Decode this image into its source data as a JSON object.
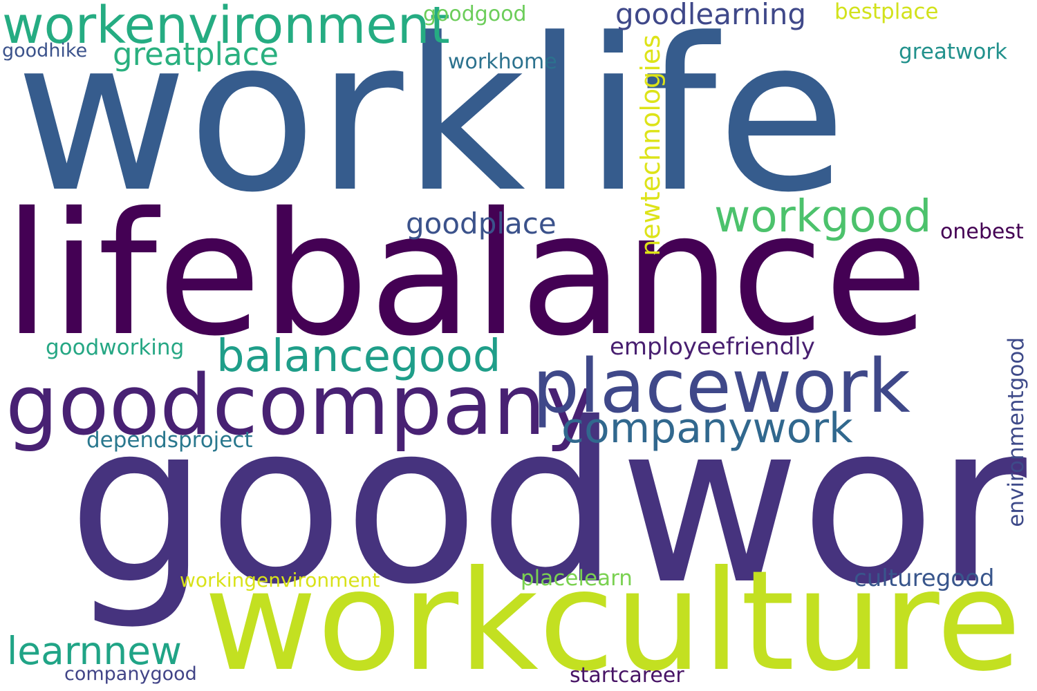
{
  "words": [
    {
      "text": "worklife",
      "color": "#365c8d"
    },
    {
      "text": "lifebalance",
      "color": "#440154"
    },
    {
      "text": "goodwork",
      "color": "#46337e"
    },
    {
      "text": "workculture",
      "color": "#c3e021"
    },
    {
      "text": "goodcompany",
      "color": "#482173"
    },
    {
      "text": "placework",
      "color": "#3f4889"
    },
    {
      "text": "workenvironment",
      "color": "#25ac82"
    },
    {
      "text": "balancegood",
      "color": "#1f9e89"
    },
    {
      "text": "companywork",
      "color": "#31688e"
    },
    {
      "text": "workgood",
      "color": "#4cc26c"
    },
    {
      "text": "goodplace",
      "color": "#3b528b"
    },
    {
      "text": "learnnew",
      "color": "#20a486"
    },
    {
      "text": "greatplace",
      "color": "#2ab07f"
    },
    {
      "text": "goodlearning",
      "color": "#3f4889"
    },
    {
      "text": "newtechnologies",
      "color": "#dde318"
    },
    {
      "text": "employeefriendly",
      "color": "#481f70"
    },
    {
      "text": "environmentgood",
      "color": "#3e4a89"
    },
    {
      "text": "culturegood",
      "color": "#39568c"
    },
    {
      "text": "goodworking",
      "color": "#26a784"
    },
    {
      "text": "dependsproject",
      "color": "#2a788e"
    },
    {
      "text": "workingenvironment",
      "color": "#d8e219"
    },
    {
      "text": "placelearn",
      "color": "#7ad151"
    },
    {
      "text": "companygood",
      "color": "#414487"
    },
    {
      "text": "startcareer",
      "color": "#471365"
    },
    {
      "text": "bestplace",
      "color": "#d2e21b"
    },
    {
      "text": "goodgood",
      "color": "#6ccd5a"
    },
    {
      "text": "workhome",
      "color": "#2c728e"
    },
    {
      "text": "greatwork",
      "color": "#21918c"
    },
    {
      "text": "onebest",
      "color": "#440154"
    },
    {
      "text": "goodhike",
      "color": "#3b528b"
    }
  ]
}
